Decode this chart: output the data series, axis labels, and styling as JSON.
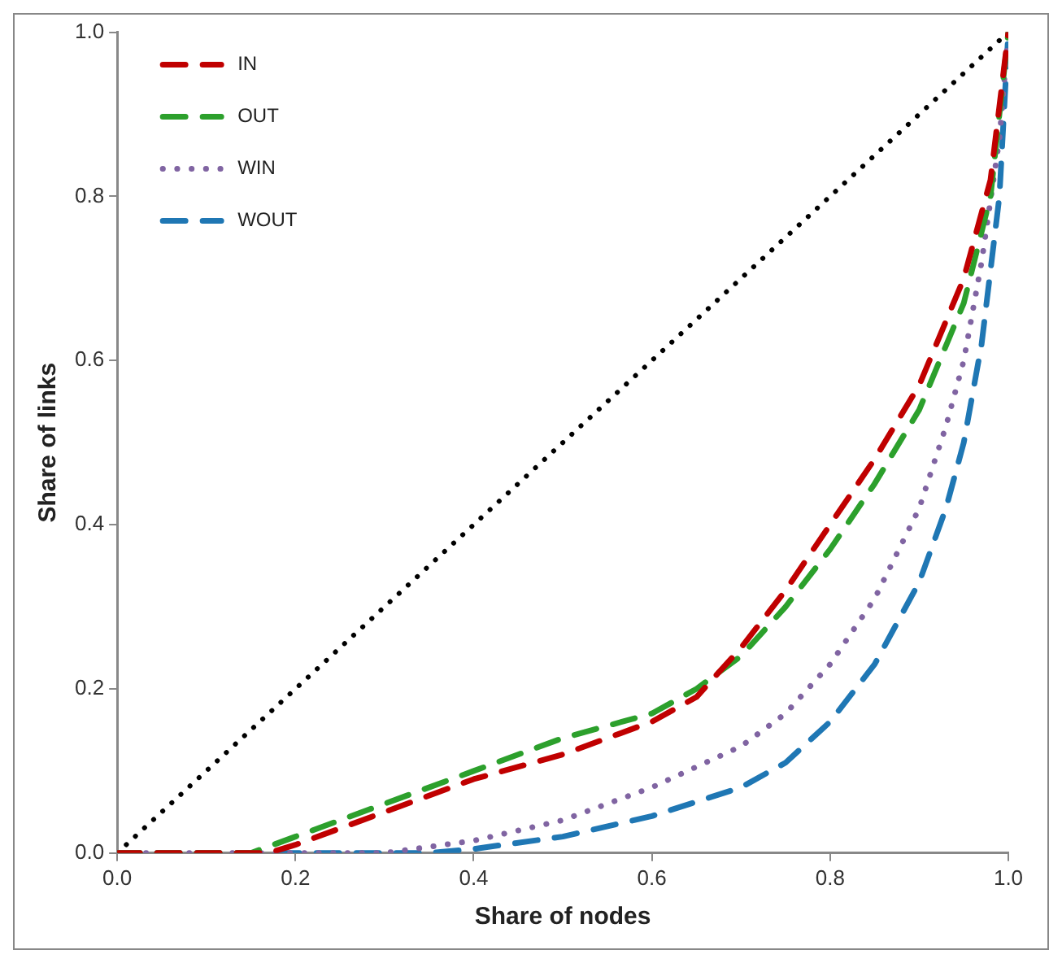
{
  "chart_data": {
    "type": "line",
    "xlabel": "Share of nodes",
    "ylabel": "Share of links",
    "xlim": [
      0,
      1
    ],
    "ylim": [
      0,
      1
    ],
    "xticks": [
      {
        "value": 0,
        "label": "0.0"
      },
      0.2,
      0.4,
      0.6,
      0.8,
      {
        "value": 1,
        "label": "1.0"
      }
    ],
    "yticks": [
      {
        "value": 0,
        "label": "0.0"
      },
      0.2,
      0.4,
      0.6,
      0.8,
      {
        "value": 1,
        "label": "1.0"
      }
    ],
    "grid": false,
    "legend": "top left",
    "marker": "none",
    "series": [
      {
        "name": "IN",
        "color": "#c00000",
        "line_style": "dashed",
        "x": [
          0,
          0.1,
          0.17,
          0.2,
          0.3,
          0.4,
          0.5,
          0.6,
          0.65,
          0.7,
          0.75,
          0.8,
          0.85,
          0.9,
          0.95,
          0.98,
          1
        ],
        "values": [
          0,
          0,
          0,
          0.01,
          0.05,
          0.09,
          0.12,
          0.16,
          0.19,
          0.25,
          0.32,
          0.4,
          0.48,
          0.57,
          0.7,
          0.82,
          1
        ]
      },
      {
        "name": "OUT",
        "color": "#2ca02c",
        "line_style": "dashed",
        "x": [
          0,
          0.1,
          0.15,
          0.2,
          0.3,
          0.4,
          0.5,
          0.6,
          0.65,
          0.7,
          0.75,
          0.8,
          0.85,
          0.9,
          0.95,
          0.98,
          1
        ],
        "values": [
          0,
          0,
          0,
          0.02,
          0.06,
          0.1,
          0.14,
          0.17,
          0.2,
          0.24,
          0.3,
          0.37,
          0.45,
          0.54,
          0.67,
          0.8,
          1
        ]
      },
      {
        "name": "WIN",
        "color": "#8064a2",
        "line_style": "dotted",
        "x": [
          0,
          0.1,
          0.2,
          0.3,
          0.4,
          0.5,
          0.6,
          0.7,
          0.75,
          0.8,
          0.85,
          0.9,
          0.93,
          0.95,
          0.97,
          0.99,
          1
        ],
        "values": [
          0,
          0,
          0,
          0,
          0.015,
          0.04,
          0.08,
          0.13,
          0.17,
          0.23,
          0.31,
          0.42,
          0.52,
          0.6,
          0.72,
          0.87,
          1
        ]
      },
      {
        "name": "WOUT",
        "color": "#1f77b4",
        "line_style": "dashed",
        "x": [
          0,
          0.1,
          0.2,
          0.35,
          0.4,
          0.5,
          0.6,
          0.7,
          0.75,
          0.8,
          0.85,
          0.9,
          0.93,
          0.95,
          0.97,
          0.99,
          1
        ],
        "values": [
          0,
          0,
          0,
          0,
          0.005,
          0.02,
          0.045,
          0.08,
          0.11,
          0.16,
          0.23,
          0.33,
          0.42,
          0.5,
          0.62,
          0.8,
          1
        ]
      },
      {
        "color": "#000000",
        "line_style": "dotted",
        "x": [
          0,
          1
        ],
        "values": [
          0,
          1
        ]
      }
    ]
  }
}
